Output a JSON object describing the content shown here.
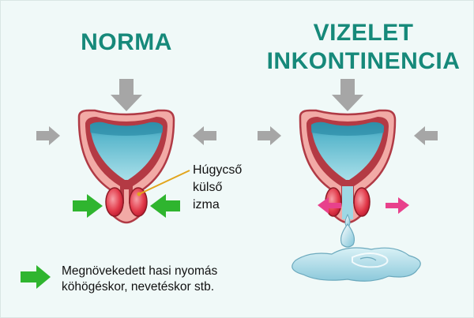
{
  "titles": {
    "normal": "NORMA",
    "incontinence_line1": "VIZELET",
    "incontinence_line2": "INKONTINENCIA"
  },
  "callout": {
    "line1": "Húgycső",
    "line2": "külső",
    "line3": "izma"
  },
  "legend": {
    "line1": "Megnövekedett hasi nyomás",
    "line2": "köhögéskor, nevetéskor stb."
  },
  "colors": {
    "title": "#16897a",
    "pressure_arrow": "#a6a6a6",
    "cough_arrow": "#2fb52f",
    "relax_arrow": "#e8418c",
    "urine": "#6cc7d6",
    "bladder_wall": "#e3767a"
  }
}
